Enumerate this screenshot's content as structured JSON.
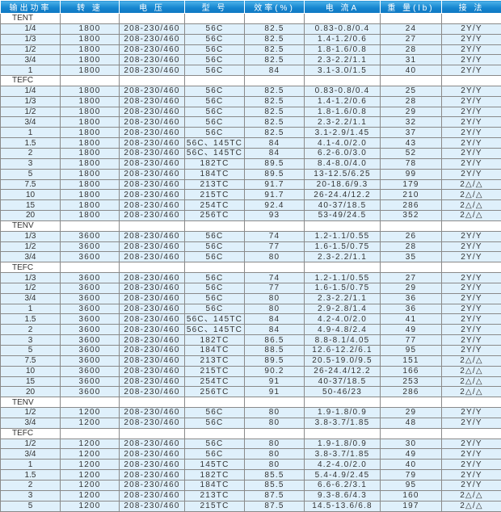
{
  "colors": {
    "header": "#1686d0",
    "data_row": "#dff0fb",
    "section_row": "#ffffff"
  },
  "headers": [
    "输出功率",
    "转 速",
    "电 压",
    "型 号",
    "效率(%)",
    "电 流A",
    "重 量(lb)",
    "接 法"
  ],
  "rows": [
    {
      "section": "TENT"
    },
    [
      "1/4",
      "1800",
      "208-230/460",
      "56C",
      "82.5",
      "0.83-0.8/0.4",
      "24",
      "2Y/Y"
    ],
    [
      "1/3",
      "1800",
      "208-230/460",
      "56C",
      "82.5",
      "1.4-1.2/0.6",
      "27",
      "2Y/Y"
    ],
    [
      "1/2",
      "1800",
      "208-230/460",
      "56C",
      "82.5",
      "1.8-1.6/0.8",
      "28",
      "2Y/Y"
    ],
    [
      "3/4",
      "1800",
      "208-230/460",
      "56C",
      "82.5",
      "2.3-2.2/1.1",
      "31",
      "2Y/Y"
    ],
    [
      "1",
      "1800",
      "208-230/460",
      "56C",
      "84",
      "3.1-3.0/1.5",
      "40",
      "2Y/Y"
    ],
    {
      "section": "TEFC"
    },
    [
      "1/4",
      "1800",
      "208-230/460",
      "56C",
      "82.5",
      "0.83-0.8/0.4",
      "25",
      "2Y/Y"
    ],
    [
      "1/3",
      "1800",
      "208-230/460",
      "56C",
      "82.5",
      "1.4-1.2/0.6",
      "28",
      "2Y/Y"
    ],
    [
      "1/2",
      "1800",
      "208-230/460",
      "56C",
      "82.5",
      "1.8-1.6/0.8",
      "29",
      "2Y/Y"
    ],
    [
      "3/4",
      "1800",
      "208-230/460",
      "56C",
      "82.5",
      "2.3-2.2/1.1",
      "32",
      "2Y/Y"
    ],
    [
      "1",
      "1800",
      "208-230/460",
      "56C",
      "82.5",
      "3.1-2.9/1.45",
      "37",
      "2Y/Y"
    ],
    [
      "1.5",
      "1800",
      "208-230/460",
      "56C、145TC",
      "84",
      "4.1-4.0/2.0",
      "43",
      "2Y/Y"
    ],
    [
      "2",
      "1800",
      "208-230/460",
      "56C、145TC",
      "84",
      "6.2-6.0/3.0",
      "52",
      "2Y/Y"
    ],
    [
      "3",
      "1800",
      "208-230/460",
      "182TC",
      "89.5",
      "8.4-8.0/4.0",
      "78",
      "2Y/Y"
    ],
    [
      "5",
      "1800",
      "208-230/460",
      "184TC",
      "89.5",
      "13-12.5/6.25",
      "99",
      "2Y/Y"
    ],
    [
      "7.5",
      "1800",
      "208-230/460",
      "213TC",
      "91.7",
      "20-18.6/9.3",
      "179",
      "2△/△"
    ],
    [
      "10",
      "1800",
      "208-230/460",
      "215TC",
      "91.7",
      "26-24.4/12.2",
      "210",
      "2△/△"
    ],
    [
      "15",
      "1800",
      "208-230/460",
      "254TC",
      "92.4",
      "40-37/18.5",
      "286",
      "2△/△"
    ],
    [
      "20",
      "1800",
      "208-230/460",
      "256TC",
      "93",
      "53-49/24.5",
      "352",
      "2△/△"
    ],
    {
      "section": "TENV"
    },
    [
      "1/3",
      "3600",
      "208-230/460",
      "56C",
      "74",
      "1.2-1.1/0.55",
      "26",
      "2Y/Y"
    ],
    [
      "1/2",
      "3600",
      "208-230/460",
      "56C",
      "77",
      "1.6-1.5/0.75",
      "28",
      "2Y/Y"
    ],
    [
      "3/4",
      "3600",
      "208-230/460",
      "56C",
      "80",
      "2.3-2.2/1.1",
      "35",
      "2Y/Y"
    ],
    {
      "section": "TEFC"
    },
    [
      "1/3",
      "3600",
      "208-230/460",
      "56C",
      "74",
      "1.2-1.1/0.55",
      "27",
      "2Y/Y"
    ],
    [
      "1/2",
      "3600",
      "208-230/460",
      "56C",
      "77",
      "1.6-1.5/0.75",
      "29",
      "2Y/Y"
    ],
    [
      "3/4",
      "3600",
      "208-230/460",
      "56C",
      "80",
      "2.3-2.2/1.1",
      "36",
      "2Y/Y"
    ],
    [
      "1",
      "3600",
      "208-230/460",
      "56C",
      "80",
      "2.9-2.8/1.4",
      "36",
      "2Y/Y"
    ],
    [
      "1.5",
      "3600",
      "208-230/460",
      "56C、145TC",
      "84",
      "4.2-4.0/2.0",
      "41",
      "2Y/Y"
    ],
    [
      "2",
      "3600",
      "208-230/460",
      "56C、145TC",
      "84",
      "4.9-4.8/2.4",
      "49",
      "2Y/Y"
    ],
    [
      "3",
      "3600",
      "208-230/460",
      "182TC",
      "86.5",
      "8.8-8.1/4.05",
      "77",
      "2Y/Y"
    ],
    [
      "5",
      "3600",
      "208-230/460",
      "184TC",
      "88.5",
      "12.6-12.2/6.1",
      "95",
      "2Y/Y"
    ],
    [
      "7.5",
      "3600",
      "208-230/460",
      "213TC",
      "89.5",
      "20.5-19.0/9.5",
      "151",
      "2△/△"
    ],
    [
      "10",
      "3600",
      "208-230/460",
      "215TC",
      "90.2",
      "26-24.4/12.2",
      "166",
      "2△/△"
    ],
    [
      "15",
      "3600",
      "208-230/460",
      "254TC",
      "91",
      "40-37/18.5",
      "253",
      "2△/△"
    ],
    [
      "20",
      "3600",
      "208-230/460",
      "256TC",
      "91",
      "50-46/23",
      "286",
      "2△/△"
    ],
    {
      "section": "TENV"
    },
    [
      "1/2",
      "1200",
      "208-230/460",
      "56C",
      "80",
      "1.9-1.8/0.9",
      "29",
      "2Y/Y"
    ],
    [
      "3/4",
      "1200",
      "208-230/460",
      "56C",
      "80",
      "3.8-3.7/1.85",
      "48",
      "2Y/Y"
    ],
    {
      "section": "TEFC"
    },
    [
      "1/2",
      "1200",
      "208-230/460",
      "56C",
      "80",
      "1.9-1.8/0.9",
      "30",
      "2Y/Y"
    ],
    [
      "3/4",
      "1200",
      "208-230/460",
      "56C",
      "80",
      "3.8-3.7/1.85",
      "49",
      "2Y/Y"
    ],
    [
      "1",
      "1200",
      "208-230/460",
      "145TC",
      "80",
      "4.2-4.0/2.0",
      "40",
      "2Y/Y"
    ],
    [
      "1.5",
      "1200",
      "208-230/460",
      "182TC",
      "85.5",
      "5.4-4.9/2.45",
      "79",
      "2Y/Y"
    ],
    [
      "2",
      "1200",
      "208-230/460",
      "184TC",
      "85.5",
      "6.6-6.2/3.1",
      "95",
      "2Y/Y"
    ],
    [
      "3",
      "1200",
      "208-230/460",
      "213TC",
      "87.5",
      "9.3-8.6/4.3",
      "160",
      "2△/△"
    ],
    [
      "5",
      "1200",
      "208-230/460",
      "215TC",
      "87.5",
      "14.5-13.6/6.8",
      "197",
      "2△/△"
    ]
  ]
}
